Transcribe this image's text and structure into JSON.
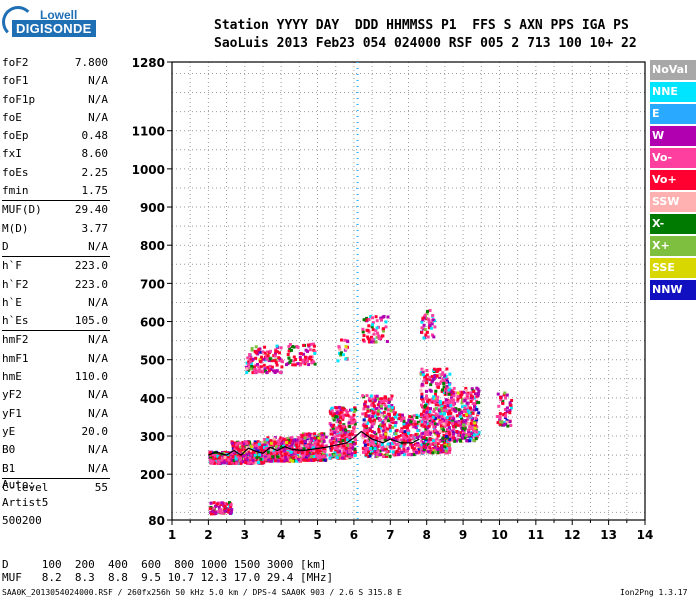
{
  "logo": {
    "line1": "Lowell",
    "line2": "DIGISONDE"
  },
  "header": {
    "row1": "Station YYYY DAY  DDD HHMMSS P1  FFS S AXN PPS IGA PS",
    "row2": "SaoLuis 2013 Feb23 054 024000 RSF 005 2 713 100 10+ 22"
  },
  "params": {
    "group1": [
      {
        "label": "foF2",
        "value": "7.800"
      },
      {
        "label": "foF1",
        "value": "N/A"
      },
      {
        "label": "foF1p",
        "value": "N/A"
      },
      {
        "label": "foE",
        "value": "N/A"
      },
      {
        "label": "foEp",
        "value": "0.48"
      },
      {
        "label": "fxI",
        "value": "8.60"
      },
      {
        "label": "foEs",
        "value": "2.25"
      },
      {
        "label": "fmin",
        "value": "1.75"
      }
    ],
    "group2": [
      {
        "label": "MUF(D)",
        "value": "29.40"
      },
      {
        "label": "M(D)",
        "value": "3.77"
      },
      {
        "label": "D",
        "value": "N/A"
      }
    ],
    "group3": [
      {
        "label": "h`F",
        "value": "223.0"
      },
      {
        "label": "h`F2",
        "value": "223.0"
      },
      {
        "label": "h`E",
        "value": "N/A"
      },
      {
        "label": "h`Es",
        "value": "105.0"
      }
    ],
    "group4": [
      {
        "label": "hmF2",
        "value": "N/A"
      },
      {
        "label": "hmF1",
        "value": "N/A"
      },
      {
        "label": "hmE",
        "value": "110.0"
      },
      {
        "label": "yF2",
        "value": "N/A"
      },
      {
        "label": "yF1",
        "value": "N/A"
      },
      {
        "label": "yE",
        "value": "20.0"
      },
      {
        "label": "B0",
        "value": "N/A"
      },
      {
        "label": "B1",
        "value": "N/A"
      }
    ],
    "group5": [
      {
        "label": "C-level",
        "value": "55"
      }
    ]
  },
  "autoscaling": {
    "line1": "Auto:",
    "line2": "Artist5",
    "line3": "500200"
  },
  "legend": [
    {
      "label": "NoVal",
      "color": "#a8a8a8"
    },
    {
      "label": "NNE",
      "color": "#00e5ff"
    },
    {
      "label": "E",
      "color": "#29a9ff"
    },
    {
      "label": "W",
      "color": "#b000b0"
    },
    {
      "label": "Vo-",
      "color": "#ff3fa0"
    },
    {
      "label": "Vo+",
      "color": "#ff0030"
    },
    {
      "label": "SSW",
      "color": "#ffb0b0"
    },
    {
      "label": "X-",
      "color": "#007a00"
    },
    {
      "label": "X+",
      "color": "#7fbf3f"
    },
    {
      "label": "SSE",
      "color": "#d8d800"
    },
    {
      "label": "NNW",
      "color": "#1010c0"
    }
  ],
  "muf_table": {
    "d_row": "D     100  200  400  600  800 1000 1500 3000 [km]",
    "muf_row": "MUF   8.2  8.3  8.8  9.5 10.7 12.3 17.0 29.4 [MHz]"
  },
  "footer": {
    "left": "SAA0K_2013054024000.RSF / 260fx256h 50 kHz 5.0 km / DPS-4 SAA0K 903 / 2.6 S 315.8 E",
    "right": "Ion2Png 1.3.17"
  },
  "chart_data": {
    "type": "scatter",
    "title": "",
    "xlabel": "",
    "ylabel": "",
    "xlim": [
      1,
      14
    ],
    "ylim": [
      80,
      1280
    ],
    "x_ticks": [
      1,
      2,
      3,
      4,
      5,
      6,
      7,
      8,
      9,
      10,
      11,
      12,
      13,
      14
    ],
    "y_ticks": [
      80,
      200,
      300,
      400,
      500,
      600,
      700,
      800,
      900,
      1000,
      1100,
      1280
    ],
    "grid": true,
    "trace_x": [
      2.0,
      2.2,
      2.5,
      2.7,
      2.9,
      3.1,
      3.3,
      3.5,
      3.7,
      3.9,
      4.1,
      4.3,
      4.6,
      4.9,
      5.2,
      5.5,
      5.8,
      6.0,
      6.2,
      6.5,
      6.8,
      7.0,
      7.3,
      7.6,
      7.8
    ],
    "trace_y": [
      250,
      258,
      250,
      262,
      250,
      268,
      260,
      255,
      270,
      262,
      272,
      265,
      262,
      266,
      270,
      276,
      282,
      295,
      312,
      292,
      282,
      292,
      282,
      282,
      292
    ],
    "vline_x": 6.1
  }
}
